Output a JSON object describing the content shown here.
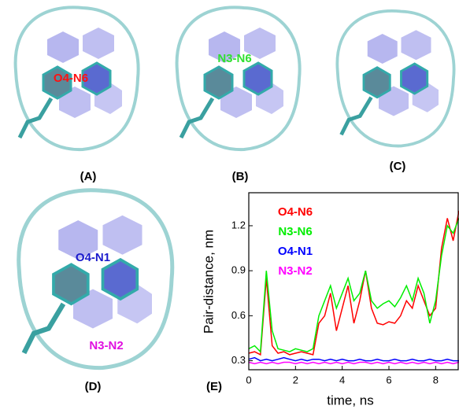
{
  "panels": [
    {
      "label": "(A)",
      "annotations": [
        {
          "text": "O4-N6",
          "color": "#ff1010"
        }
      ]
    },
    {
      "label": "(B)",
      "annotations": [
        {
          "text": "N3-N6",
          "color": "#30e030"
        }
      ]
    },
    {
      "label": "(C)",
      "annotations": []
    },
    {
      "label": "(D)",
      "annotations": [
        {
          "text": "O4-N1",
          "color": "#1a1acc"
        },
        {
          "text": "N3-N2",
          "color": "#e010e0"
        }
      ]
    }
  ],
  "chart_data": {
    "type": "line",
    "label": "(E)",
    "xlabel": "time, ns",
    "ylabel": "Pair-distance, nm",
    "xlim": [
      0,
      9
    ],
    "xticks": [
      0,
      2,
      4,
      6,
      8
    ],
    "ylim": [
      0.24,
      1.42
    ],
    "yticks": [
      0.3,
      0.6,
      0.9,
      1.2
    ],
    "x": [
      0,
      0.25,
      0.5,
      0.75,
      1,
      1.25,
      1.5,
      1.75,
      2,
      2.25,
      2.5,
      2.75,
      3,
      3.25,
      3.5,
      3.75,
      4,
      4.25,
      4.5,
      4.75,
      5,
      5.25,
      5.5,
      5.75,
      6,
      6.25,
      6.5,
      6.75,
      7,
      7.25,
      7.5,
      7.75,
      8,
      8.25,
      8.5,
      8.75,
      9
    ],
    "series": [
      {
        "name": "O4-N6",
        "color": "#ff0000",
        "values": [
          0.35,
          0.36,
          0.34,
          0.85,
          0.4,
          0.35,
          0.36,
          0.34,
          0.35,
          0.36,
          0.35,
          0.34,
          0.55,
          0.6,
          0.75,
          0.5,
          0.65,
          0.8,
          0.55,
          0.7,
          0.9,
          0.65,
          0.55,
          0.54,
          0.56,
          0.55,
          0.6,
          0.7,
          0.65,
          0.8,
          0.7,
          0.6,
          0.65,
          1.05,
          1.25,
          1.1,
          1.3
        ]
      },
      {
        "name": "N3-N6",
        "color": "#00ee00",
        "values": [
          0.38,
          0.4,
          0.36,
          0.9,
          0.5,
          0.38,
          0.37,
          0.36,
          0.38,
          0.37,
          0.36,
          0.38,
          0.6,
          0.7,
          0.8,
          0.65,
          0.75,
          0.85,
          0.7,
          0.75,
          0.9,
          0.7,
          0.65,
          0.68,
          0.7,
          0.66,
          0.72,
          0.8,
          0.7,
          0.85,
          0.75,
          0.55,
          0.7,
          1.0,
          1.2,
          1.15,
          1.25
        ]
      },
      {
        "name": "O4-N1",
        "color": "#0000ff",
        "values": [
          0.31,
          0.32,
          0.3,
          0.31,
          0.3,
          0.31,
          0.32,
          0.31,
          0.3,
          0.31,
          0.3,
          0.31,
          0.31,
          0.3,
          0.31,
          0.3,
          0.31,
          0.3,
          0.3,
          0.31,
          0.3,
          0.3,
          0.31,
          0.3,
          0.3,
          0.31,
          0.3,
          0.3,
          0.31,
          0.3,
          0.3,
          0.31,
          0.3,
          0.3,
          0.31,
          0.3,
          0.3
        ]
      },
      {
        "name": "N3-N2",
        "color": "#ff00ff",
        "values": [
          0.29,
          0.28,
          0.29,
          0.28,
          0.29,
          0.28,
          0.29,
          0.29,
          0.28,
          0.29,
          0.28,
          0.29,
          0.28,
          0.29,
          0.28,
          0.29,
          0.28,
          0.29,
          0.28,
          0.29,
          0.29,
          0.28,
          0.29,
          0.28,
          0.29,
          0.28,
          0.29,
          0.28,
          0.29,
          0.28,
          0.29,
          0.28,
          0.29,
          0.28,
          0.29,
          0.28,
          0.29
        ]
      }
    ]
  }
}
